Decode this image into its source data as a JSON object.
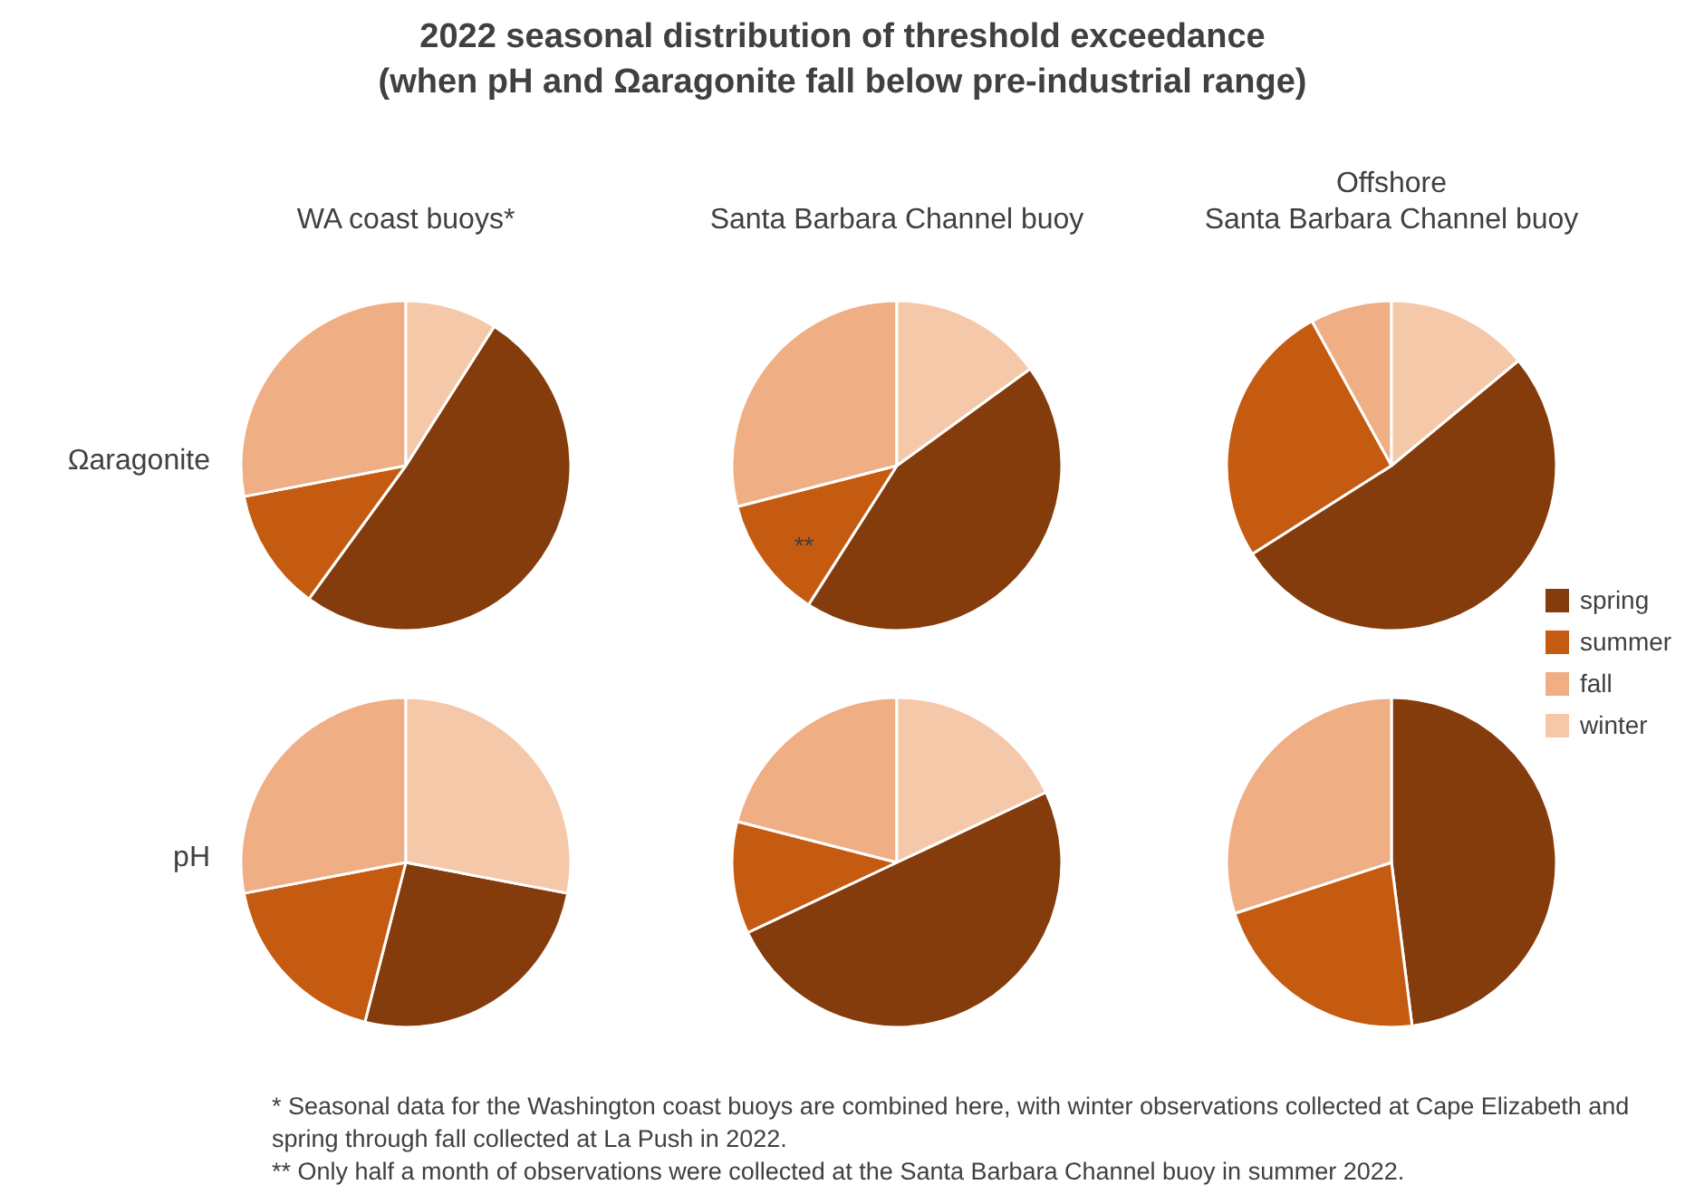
{
  "chart_data": [
    {
      "type": "pie",
      "title": "2022 seasonal distribution of threshold exceedance\n(when pH and Ωaragonite fall below pre-industrial range)",
      "subtitle": "WA coast buoys*",
      "ylabel": "Ωaragonite",
      "categories": [
        null,
        null,
        null,
        null
      ],
      "values": [
        51,
        12,
        28,
        9
      ],
      "colors": [
        "#843c0c",
        "#c55a11",
        "#efae84",
        "#f5c8a9"
      ]
    },
    {
      "type": "pie",
      "subtitle": "Santa Barbara Channel buoy",
      "categories": [
        null,
        null,
        null,
        null
      ],
      "values": [
        44,
        12,
        29,
        15
      ],
      "colors": [
        "#843c0c",
        "#c55a11",
        "#efae84",
        "#f5c8a9"
      ],
      "annotations": [
        "**"
      ]
    },
    {
      "type": "pie",
      "subtitle": "Offshore\nSanta Barbara Channel buoy",
      "categories": [
        "spring",
        "summer",
        "fall",
        "winter"
      ],
      "values": [
        52,
        26,
        8,
        14
      ],
      "colors": [
        "#843c0c",
        "#c55a11",
        "#efae84",
        "#f5c8a9"
      ],
      "legend": "right"
    },
    {
      "type": "pie",
      "ylabel": "pH",
      "categories": [
        null,
        null,
        null,
        null
      ],
      "values": [
        26,
        18,
        28,
        28
      ],
      "colors": [
        "#843c0c",
        "#c55a11",
        "#efae84",
        "#f5c8a9"
      ]
    },
    {
      "type": "pie",
      "categories": [
        null,
        null,
        null,
        null
      ],
      "values": [
        50,
        11,
        21,
        18
      ],
      "colors": [
        "#843c0c",
        "#c55a11",
        "#efae84",
        "#f5c8a9"
      ]
    },
    {
      "type": "pie",
      "categories": [
        null,
        null,
        null,
        null
      ],
      "values": [
        48,
        22,
        30,
        0
      ],
      "colors": [
        "#843c0c",
        "#c55a11",
        "#efae84",
        "#f5c8a9"
      ],
      "annotations": [
        "* Seasonal data for the Washington coast buoys are combined here, with winter observations collected at Cape Elizabeth and spring through fall collected at La Push in 2022.",
        "** Only half a month of observations were collected at the Santa Barbara Channel buoy in summer 2022."
      ]
    }
  ]
}
